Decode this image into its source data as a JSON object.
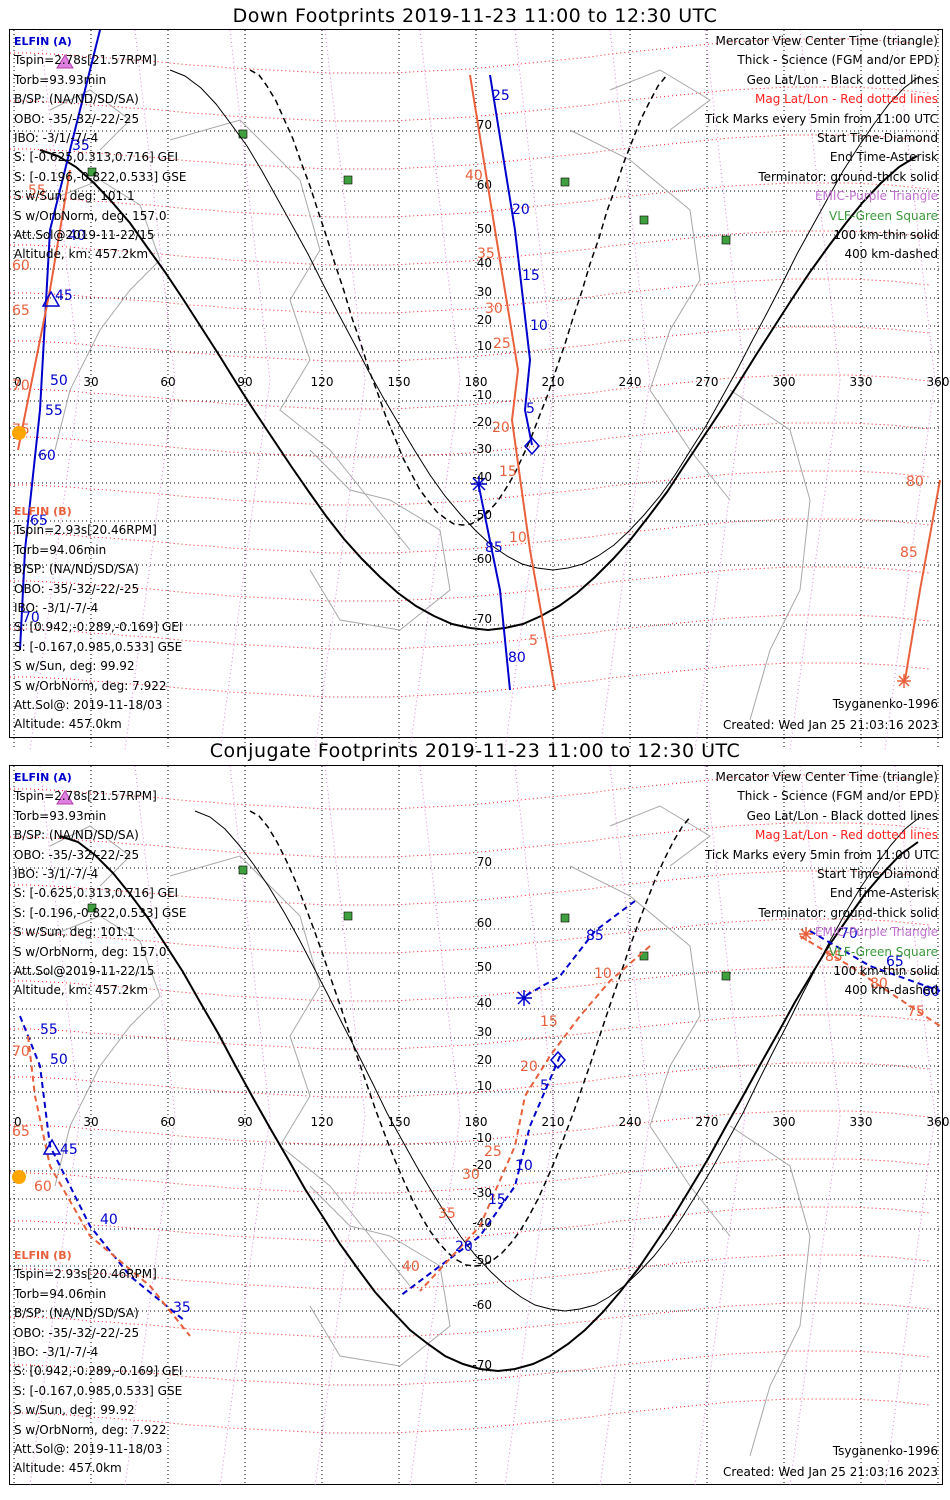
{
  "panels": [
    {
      "title": "Down Footprints 2019-11-23 11:00 to 12:30 UTC",
      "elfin_a": {
        "name": "ELFIN (A)",
        "lines": [
          "Tspin=2.78s[21.57RPM]",
          "Torb=93.93min",
          "B/SP: (NA/ND/SD/SA)",
          "OBO: -35/-32/-22/-25",
          "IBO: -3/1/-7/-4",
          "S: [-0.625,0.313,0.716] GEI",
          "S: [-0.196,-0.822,0.533] GSE",
          "S w/Sun, deg: 101.1",
          "S w/OrbNorm, deg: 157.0",
          "Att.Sol@2019-11-22/15",
          "Altitude, km: 457.2km"
        ]
      },
      "elfin_b": {
        "name": "ELFIN (B)",
        "lines": [
          "Tspin=2.93s[20.46RPM]",
          "Torb=94.06min",
          "B/SP: (NA/ND/SD/SA)",
          "OBO: -35/-32/-22/-25",
          "IBO: -3/1/-7/-4",
          "S: [0.942,-0.289,-0.169] GEI",
          "S: [-0.167,0.985,0.533] GSE",
          "S w/Sun, deg: 99.92",
          "S w/OrbNorm, deg: 7.922",
          "Att.Sol@: 2019-11-18/03",
          "Altitude: 457.0km"
        ]
      },
      "model": "Tsyganenko-1996",
      "created": "Created: Wed Jan 25 21:03:16 2023"
    },
    {
      "title": "Conjugate Footprints 2019-11-23 11:00 to 12:30 UTC",
      "elfin_a": {
        "name": "ELFIN (A)",
        "lines": [
          "Tspin=2.78s[21.57RPM]",
          "Torb=93.93min",
          "B/SP: (NA/ND/SD/SA)",
          "OBO: -35/-32/-22/-25",
          "IBO: -3/1/-7/-4",
          "S: [-0.625,0.313,0.716] GEI",
          "S: [-0.196,-0.822,0.533] GSE",
          "S w/Sun, deg: 101.1",
          "S w/OrbNorm, deg: 157.0",
          "Att.Sol@2019-11-22/15",
          "Altitude, km: 457.2km"
        ]
      },
      "elfin_b": {
        "name": "ELFIN (B)",
        "lines": [
          "Tspin=2.93s[20.46RPM]",
          "Torb=94.06min",
          "B/SP: (NA/ND/SD/SA)",
          "OBO: -35/-32/-22/-25",
          "IBO: -3/1/-7/-4",
          "S: [0.942,-0.289,-0.169] GEI",
          "S: [-0.167,0.985,0.533] GSE",
          "S w/Sun, deg: 99.92",
          "S w/OrbNorm, deg: 7.922",
          "Att.Sol@: 2019-11-18/03",
          "Altitude: 457.0km"
        ]
      },
      "model": "Tsyganenko-1996",
      "created": "Created: Wed Jan 25 21:03:16 2023"
    }
  ],
  "legend": {
    "center": "Mercator View Center Time (triangle)",
    "thick": "Thick - Science (FGM and/or EPD)",
    "geo": "Geo Lat/Lon - Black dotted lines",
    "mag": "Mag Lat/Lon - Red dotted lines",
    "ticks": "Tick Marks every 5min from 11:00 UTC",
    "start": "Start Time-Diamond",
    "end": "End Time-Asterisk",
    "terminator": "Terminator: ground-thick solid",
    "emic": "EMIC-Purple Triangle",
    "vlf": "VLF-Green Square",
    "thin": "100 km-thin solid",
    "dashed": "400 km-dashed"
  },
  "lon_labels": [
    "0",
    "30",
    "60",
    "90",
    "120",
    "150",
    "180",
    "210",
    "240",
    "270",
    "300",
    "330",
    "360"
  ],
  "lat_labels": [
    "70",
    "60",
    "50",
    "40",
    "30",
    "20",
    "10",
    "-10",
    "-20",
    "-30",
    "-40",
    "-50",
    "-60",
    "-70"
  ],
  "colors": {
    "elfin_a": "#0000cc",
    "elfin_b": "#e8603c",
    "mag": "#ff2020",
    "geo": "#000000",
    "emic": "#c070d0",
    "vlf": "#3a9a3a",
    "coast": "#a8a8a8"
  },
  "tracks": {
    "down_a_ticks": [
      "25",
      "20",
      "15",
      "10",
      "5"
    ],
    "down_a_s_ticks": [
      "35",
      "40",
      "45",
      "50",
      "55",
      "60",
      "65",
      "70",
      "85",
      "80"
    ],
    "down_b_ticks": [
      "40",
      "35",
      "30",
      "25",
      "20",
      "15",
      "10",
      "5",
      "55",
      "60",
      "65",
      "70",
      "75",
      "80",
      "85"
    ],
    "conj_a_ticks": [
      "85",
      "10",
      "15",
      "20",
      "5",
      "55",
      "50",
      "45",
      "40",
      "35",
      "70",
      "65",
      "60"
    ],
    "conj_b_ticks": [
      "10",
      "15",
      "20",
      "25",
      "30",
      "35",
      "40",
      "70",
      "65",
      "60",
      "85",
      "80",
      "75"
    ]
  }
}
